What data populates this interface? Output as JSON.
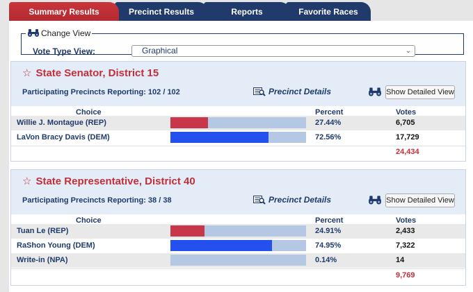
{
  "tabs": [
    {
      "label": "Summary Results",
      "active": true
    },
    {
      "label": "Precinct Results",
      "active": false
    },
    {
      "label": "Reports",
      "active": false
    },
    {
      "label": "Favorite Races",
      "active": false
    }
  ],
  "change_view": {
    "legend": "Change View",
    "vote_type_label": "Vote Type View:",
    "vote_type_value": "Graphical"
  },
  "colors": {
    "rep": "#c8364a",
    "dem": "#2450f0",
    "bar_bg": "#b4c8e4",
    "total": "#c0303a"
  },
  "races": [
    {
      "title": "State Senator, District 15",
      "precincts": "Participating Precincts Reporting: 102 / 102",
      "precinct_details": "Precinct Details",
      "show_detailed": "Show Detailed View",
      "headers": {
        "choice": "Choice",
        "percent": "Percent",
        "votes": "Votes"
      },
      "candidates": [
        {
          "name": "Willie J. Montague (REP)",
          "percent": "27.44%",
          "pct": 27.44,
          "votes": "6,705",
          "party": "rep"
        },
        {
          "name": "LaVon Bracy Davis (DEM)",
          "percent": "72.56%",
          "pct": 72.56,
          "votes": "17,729",
          "party": "dem"
        }
      ],
      "total": "24,434"
    },
    {
      "title": "State Representative, District 40",
      "precincts": "Participating Precincts Reporting: 38 / 38",
      "precinct_details": "Precinct Details",
      "show_detailed": "Show Detailed View",
      "headers": {
        "choice": "Choice",
        "percent": "Percent",
        "votes": "Votes"
      },
      "candidates": [
        {
          "name": "Tuan Le (REP)",
          "percent": "24.91%",
          "pct": 24.91,
          "votes": "2,433",
          "party": "rep"
        },
        {
          "name": "RaShon Young (DEM)",
          "percent": "74.95%",
          "pct": 74.95,
          "votes": "7,322",
          "party": "dem"
        },
        {
          "name": "Write-in (NPA)",
          "percent": "0.14%",
          "pct": 0.14,
          "votes": "14",
          "party": "npa"
        }
      ],
      "total": "9,769"
    }
  ]
}
